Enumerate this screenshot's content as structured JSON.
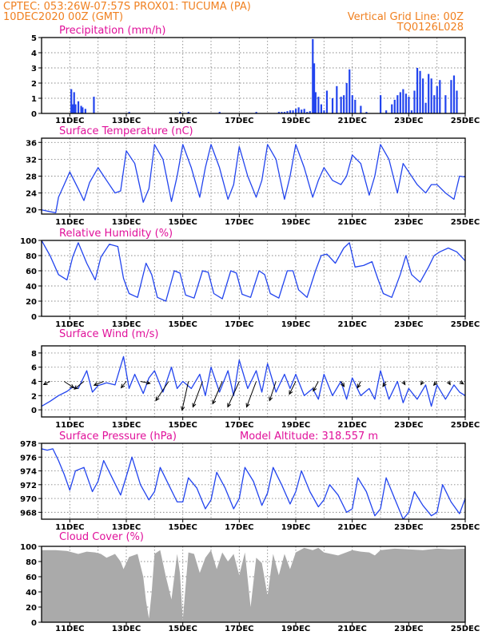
{
  "header": {
    "line1_left": "CPTEC:    053:26W-07:57S   PROX01: TUCUMA (PA)",
    "line2_left": "10DEC2020 00Z (GMT)",
    "line2_right": "Vertical Grid Line: 00Z",
    "line3_right": "TQ0126L028"
  },
  "colors": {
    "header": "#f08020",
    "title": "#e0109a",
    "series": "#2244ee",
    "cloud": "#aaaaaa",
    "wind_arrow": "#000000"
  },
  "chart_data": [
    {
      "id": "precipitation",
      "type": "bar",
      "title": "Precipitation (mm/h)",
      "ylim": [
        0,
        5
      ],
      "yticks": [
        0,
        1,
        2,
        3,
        4,
        5
      ],
      "grid": true,
      "x_days": [
        10,
        25
      ],
      "xticks": [
        "11DEC",
        "13DEC",
        "15DEC",
        "17DEC",
        "19DEC",
        "21DEC",
        "23DEC",
        "25DEC"
      ],
      "series": [
        {
          "x": [
            11.05,
            11.1,
            11.15,
            11.2,
            11.3,
            11.4,
            11.45,
            11.55,
            11.85,
            13.1,
            14.9,
            15.2,
            16.3,
            17.6,
            18.4,
            18.5,
            18.6,
            18.7,
            18.8,
            18.9,
            19.0,
            19.1,
            19.2,
            19.3,
            19.4,
            19.5,
            19.6,
            19.65,
            19.7,
            19.8,
            19.9,
            20.0,
            20.1,
            20.3,
            20.45,
            20.6,
            20.7,
            20.8,
            20.9,
            21.0,
            21.1,
            21.3,
            21.5,
            22.0,
            22.2,
            22.4,
            22.5,
            22.6,
            22.7,
            22.8,
            22.9,
            23.0,
            23.1,
            23.2,
            23.3,
            23.4,
            23.5,
            23.6,
            23.7,
            23.8,
            23.9,
            24.0,
            24.1,
            24.3,
            24.5,
            24.6,
            24.7
          ],
          "values": [
            1.6,
            0.6,
            1.4,
            0.6,
            0.8,
            0.5,
            0.4,
            0.3,
            1.1,
            0.1,
            0.1,
            0.1,
            0.1,
            0.1,
            0.1,
            0.1,
            0.1,
            0.15,
            0.2,
            0.2,
            0.3,
            0.4,
            0.25,
            0.3,
            0.1,
            0.15,
            4.9,
            3.3,
            1.4,
            1.1,
            0.6,
            0.2,
            1.5,
            1.0,
            1.8,
            1.1,
            1.2,
            2.0,
            2.9,
            1.2,
            0.9,
            0.5,
            0.1,
            1.2,
            0.2,
            0.6,
            0.9,
            1.2,
            1.4,
            1.6,
            1.3,
            1.1,
            0.2,
            1.5,
            3.0,
            2.8,
            2.3,
            0.7,
            2.6,
            2.3,
            1.2,
            1.8,
            2.2,
            1.2,
            2.2,
            2.5,
            1.5
          ]
        }
      ]
    },
    {
      "id": "temperature",
      "type": "line",
      "title": "Surface Temperature (nC)",
      "ylim": [
        19,
        37
      ],
      "yticks": [
        20,
        24,
        28,
        32,
        36
      ],
      "grid": true,
      "x_days": [
        10,
        25
      ],
      "xticks": [
        "11DEC",
        "13DEC",
        "15DEC",
        "17DEC",
        "19DEC",
        "21DEC",
        "23DEC",
        "25DEC"
      ],
      "series": [
        {
          "x": [
            10.0,
            10.2,
            10.5,
            10.6,
            10.8,
            11.0,
            11.3,
            11.5,
            11.7,
            12.0,
            12.3,
            12.6,
            12.8,
            13.0,
            13.3,
            13.6,
            13.8,
            14.0,
            14.3,
            14.6,
            14.8,
            15.0,
            15.3,
            15.6,
            15.8,
            16.0,
            16.3,
            16.6,
            16.8,
            17.0,
            17.3,
            17.6,
            17.8,
            18.0,
            18.3,
            18.6,
            18.8,
            19.0,
            19.3,
            19.6,
            19.8,
            20.0,
            20.3,
            20.6,
            20.8,
            21.0,
            21.3,
            21.6,
            21.8,
            22.0,
            22.3,
            22.6,
            22.8,
            23.0,
            23.3,
            23.6,
            23.8,
            24.0,
            24.3,
            24.6,
            24.8,
            25.0
          ],
          "values": [
            20.0,
            19.7,
            19.3,
            23.0,
            26.0,
            29.0,
            25.0,
            22.2,
            26.5,
            30.0,
            27.0,
            24.0,
            24.5,
            34.0,
            31.0,
            21.8,
            25.0,
            35.5,
            32.0,
            22.0,
            28.0,
            35.5,
            30.0,
            23.0,
            30.0,
            35.5,
            30.0,
            22.5,
            26.0,
            35.0,
            28.0,
            23.0,
            27.0,
            35.5,
            32.0,
            22.5,
            28.0,
            35.5,
            30.0,
            23.0,
            27.0,
            30.0,
            27.0,
            26.0,
            28.0,
            33.0,
            31.0,
            23.5,
            28.0,
            35.5,
            32.0,
            24.0,
            31.0,
            29.0,
            26.0,
            24.0,
            26.0,
            26.0,
            24.0,
            22.5,
            28.0,
            27.8
          ]
        }
      ]
    },
    {
      "id": "humidity",
      "type": "line",
      "title": "Relative Humidity (%)",
      "ylim": [
        0,
        100
      ],
      "yticks": [
        0,
        20,
        40,
        60,
        80,
        100
      ],
      "grid": true,
      "x_days": [
        10,
        25
      ],
      "xticks": [
        "11DEC",
        "13DEC",
        "15DEC",
        "17DEC",
        "19DEC",
        "21DEC",
        "23DEC",
        "25DEC"
      ],
      "series": [
        {
          "x": [
            10.0,
            10.3,
            10.6,
            10.9,
            11.1,
            11.3,
            11.6,
            11.9,
            12.1,
            12.4,
            12.7,
            12.9,
            13.1,
            13.4,
            13.7,
            13.9,
            14.1,
            14.4,
            14.7,
            14.9,
            15.1,
            15.4,
            15.7,
            15.9,
            16.1,
            16.4,
            16.7,
            16.9,
            17.1,
            17.4,
            17.7,
            17.9,
            18.1,
            18.4,
            18.7,
            18.9,
            19.1,
            19.4,
            19.7,
            19.9,
            20.1,
            20.4,
            20.7,
            20.9,
            21.1,
            21.4,
            21.7,
            21.9,
            22.1,
            22.4,
            22.7,
            22.9,
            23.1,
            23.4,
            23.7,
            23.9,
            24.1,
            24.4,
            24.7,
            25.0
          ],
          "values": [
            100,
            80,
            55,
            48,
            78,
            97,
            70,
            48,
            78,
            95,
            92,
            50,
            30,
            25,
            70,
            55,
            25,
            20,
            60,
            57,
            28,
            24,
            60,
            58,
            30,
            23,
            60,
            57,
            29,
            25,
            60,
            55,
            30,
            24,
            60,
            60,
            35,
            25,
            60,
            80,
            82,
            70,
            90,
            97,
            65,
            67,
            72,
            50,
            30,
            25,
            55,
            80,
            55,
            45,
            65,
            80,
            85,
            90,
            85,
            73
          ]
        }
      ]
    },
    {
      "id": "wind",
      "type": "line",
      "title": "Surface Wind (m/s)",
      "ylim": [
        -1,
        9
      ],
      "yticks": [
        0,
        2,
        4,
        6,
        8
      ],
      "grid": true,
      "x_days": [
        10,
        25
      ],
      "xticks": [
        "11DEC",
        "13DEC",
        "15DEC",
        "17DEC",
        "19DEC",
        "21DEC",
        "23DEC",
        "25DEC"
      ],
      "series": [
        {
          "x": [
            10.0,
            10.3,
            10.6,
            10.9,
            11.1,
            11.3,
            11.6,
            11.8,
            12.0,
            12.3,
            12.6,
            12.9,
            13.1,
            13.3,
            13.6,
            13.8,
            14.0,
            14.3,
            14.6,
            14.8,
            15.0,
            15.3,
            15.6,
            15.8,
            16.0,
            16.3,
            16.6,
            16.8,
            17.0,
            17.3,
            17.6,
            17.8,
            18.0,
            18.3,
            18.6,
            18.8,
            19.0,
            19.3,
            19.6,
            19.8,
            20.0,
            20.3,
            20.6,
            20.8,
            21.0,
            21.3,
            21.6,
            21.8,
            22.0,
            22.3,
            22.6,
            22.8,
            23.0,
            23.3,
            23.6,
            23.8,
            24.0,
            24.3,
            24.6,
            24.8,
            25.0
          ],
          "values": [
            0.5,
            1.2,
            2.0,
            2.6,
            3.2,
            3.0,
            5.5,
            2.5,
            3.4,
            3.8,
            3.5,
            7.5,
            3.0,
            5.0,
            2.3,
            4.5,
            5.5,
            2.5,
            6.0,
            3.0,
            4.0,
            3.0,
            5.0,
            2.0,
            6.0,
            2.5,
            5.5,
            2.0,
            7.0,
            3.0,
            5.5,
            2.5,
            6.5,
            2.5,
            5.0,
            3.0,
            5.0,
            2.0,
            3.0,
            1.5,
            5.0,
            2.0,
            4.0,
            1.5,
            4.5,
            2.0,
            3.0,
            1.5,
            5.5,
            1.5,
            4.0,
            1.0,
            3.0,
            1.5,
            3.5,
            0.5,
            3.5,
            1.5,
            3.5,
            2.5,
            2.0
          ]
        }
      ],
      "wind_vectors": {
        "x": [
          10.3,
          10.8,
          11.5,
          12.2,
          13.0,
          13.5,
          14.5,
          15.2,
          15.7,
          16.4,
          17.0,
          17.6,
          18.3,
          19.0,
          19.8,
          20.6,
          21.3,
          22.2,
          22.8,
          23.5,
          24.0,
          24.4,
          24.8
        ],
        "u": [
          -1.0,
          1.5,
          -1.5,
          -1.5,
          -0.8,
          1.5,
          -2.0,
          -1.0,
          -1.5,
          -1.5,
          -1.8,
          -1.5,
          -1.0,
          -1.0,
          -0.8,
          0.5,
          -0.5,
          -0.5,
          0.3,
          -0.3,
          -0.5,
          0.3,
          0.6
        ],
        "v": [
          0.5,
          1.0,
          1.2,
          0.6,
          1.0,
          0.3,
          3.0,
          4.5,
          4.0,
          3.5,
          4.0,
          4.0,
          3.0,
          2.0,
          1.5,
          0.8,
          1.0,
          0.8,
          0.5,
          0.5,
          0.6,
          0.5,
          0.4
        ]
      }
    },
    {
      "id": "pressure",
      "type": "line",
      "title": "Surface Pressure (hPa)",
      "annotation": "Model Altitude: 318.557 m",
      "ylim": [
        967,
        978
      ],
      "yticks": [
        968,
        970,
        972,
        974,
        976,
        978
      ],
      "grid": true,
      "x_days": [
        10,
        25
      ],
      "xticks": [
        "11DEC",
        "13DEC",
        "15DEC",
        "17DEC",
        "19DEC",
        "21DEC",
        "23DEC",
        "25DEC"
      ],
      "series": [
        {
          "x": [
            10.0,
            10.2,
            10.4,
            10.6,
            10.8,
            11.0,
            11.2,
            11.5,
            11.8,
            12.0,
            12.2,
            12.5,
            12.8,
            13.0,
            13.2,
            13.5,
            13.8,
            14.0,
            14.2,
            14.5,
            14.8,
            15.0,
            15.2,
            15.5,
            15.8,
            16.0,
            16.2,
            16.5,
            16.8,
            17.0,
            17.2,
            17.5,
            17.8,
            18.0,
            18.2,
            18.5,
            18.8,
            19.0,
            19.2,
            19.5,
            19.8,
            20.0,
            20.2,
            20.5,
            20.8,
            21.0,
            21.2,
            21.5,
            21.8,
            22.0,
            22.2,
            22.5,
            22.8,
            23.0,
            23.2,
            23.5,
            23.8,
            24.0,
            24.2,
            24.5,
            24.8,
            25.0
          ],
          "values": [
            977.2,
            977.0,
            977.2,
            975.5,
            973.5,
            971.2,
            974.0,
            974.5,
            971.0,
            972.5,
            975.5,
            973.0,
            970.5,
            973.2,
            976.0,
            972.0,
            969.8,
            971.0,
            974.5,
            972.0,
            969.5,
            969.5,
            973.0,
            971.5,
            968.5,
            969.8,
            973.8,
            971.5,
            968.5,
            970.0,
            974.5,
            972.5,
            969.0,
            970.8,
            974.5,
            972.0,
            969.2,
            971.0,
            974.0,
            971.0,
            968.8,
            969.8,
            972.0,
            970.5,
            968.0,
            968.5,
            973.0,
            971.0,
            967.5,
            968.5,
            973.0,
            970.0,
            967.0,
            968.0,
            971.0,
            969.0,
            967.5,
            968.0,
            972.0,
            969.5,
            967.8,
            970.0
          ]
        }
      ]
    },
    {
      "id": "cloud",
      "type": "area",
      "title": "Cloud Cover (%)",
      "ylim": [
        0,
        100
      ],
      "yticks": [
        0,
        20,
        40,
        60,
        80,
        100
      ],
      "grid": true,
      "x_days": [
        10,
        25
      ],
      "xticks": [
        "11DEC",
        "13DEC",
        "15DEC",
        "17DEC",
        "19DEC",
        "21DEC",
        "23DEC",
        "25DEC"
      ],
      "series": [
        {
          "x": [
            10.0,
            10.5,
            10.9,
            11.1,
            11.3,
            11.6,
            11.9,
            12.1,
            12.3,
            12.6,
            12.8,
            12.9,
            13.1,
            13.4,
            13.6,
            13.7,
            13.8,
            13.9,
            14.0,
            14.2,
            14.4,
            14.6,
            14.8,
            14.9,
            15.0,
            15.2,
            15.4,
            15.6,
            15.8,
            16.0,
            16.2,
            16.4,
            16.6,
            16.8,
            17.0,
            17.2,
            17.4,
            17.6,
            17.8,
            18.0,
            18.2,
            18.4,
            18.6,
            18.8,
            19.0,
            19.3,
            19.6,
            19.8,
            20.0,
            20.5,
            21.0,
            21.3,
            21.6,
            21.8,
            22.0,
            22.5,
            23.0,
            23.5,
            24.0,
            24.5,
            25.0
          ],
          "values": [
            95,
            95,
            94,
            92,
            90,
            93,
            92,
            90,
            85,
            90,
            80,
            70,
            86,
            90,
            60,
            28,
            5,
            40,
            90,
            95,
            60,
            30,
            90,
            65,
            3,
            92,
            90,
            65,
            85,
            95,
            70,
            92,
            80,
            90,
            62,
            92,
            20,
            85,
            78,
            35,
            90,
            62,
            90,
            70,
            92,
            98,
            95,
            98,
            92,
            88,
            95,
            93,
            92,
            88,
            95,
            97,
            96,
            95,
            97,
            96,
            97
          ]
        }
      ]
    }
  ]
}
